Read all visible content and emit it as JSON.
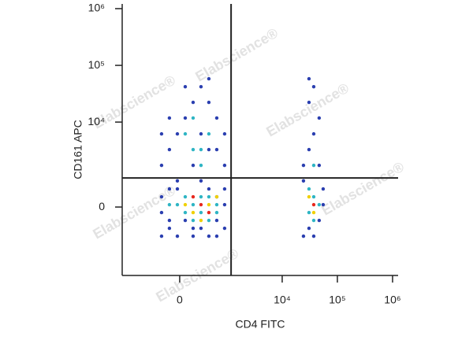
{
  "chart_data": {
    "type": "scatter",
    "xlabel": "CD4 FITC",
    "ylabel": "CD161 APC",
    "watermark": "Elabscience®",
    "xscale": "asinh",
    "xcofactor": 278,
    "yscale": "asinh",
    "ycofactor": 637,
    "xlim": [
      -1518,
      1260000
    ],
    "ylim": [
      -5100,
      1210000
    ],
    "xticks": [
      0,
      {
        "value": 10000,
        "label": "10⁴"
      },
      {
        "value": 100000,
        "label": "10⁵"
      },
      {
        "value": 1000000,
        "label": "10⁶"
      }
    ],
    "yticks": [
      0,
      {
        "value": 10000,
        "label": "10⁴"
      },
      {
        "value": 100000,
        "label": "10⁵"
      },
      {
        "value": 1000000,
        "label": "10⁶"
      }
    ],
    "gates": {
      "x": 1170,
      "y": 940,
      "color": "#222222"
    },
    "series": [
      {
        "color": "#2b3fb0",
        "x": [
          -231,
          -123,
          -27,
          65,
          164,
          281,
          428,
          623,
          884,
          -231,
          -231,
          -123,
          884,
          884,
          623,
          -27,
          428,
          164,
          -123,
          623,
          -231,
          -123,
          -27,
          65,
          164,
          281,
          428,
          623,
          884,
          -231,
          65,
          164,
          281,
          428,
          623,
          884,
          -123,
          281,
          -27,
          428,
          24300,
          30600,
          37300,
          46800,
          55300,
          24300,
          30600,
          37300,
          46800,
          30600,
          37300,
          24300,
          46800,
          55300,
          30600
        ],
        "y": [
          -943,
          -620,
          -943,
          -363,
          -943,
          -620,
          -943,
          -363,
          -620,
          -144,
          272,
          512,
          61,
          512,
          -943,
          512,
          512,
          -620,
          -363,
          272,
          1669,
          3250,
          6180,
          11800,
          22300,
          42000,
          3250,
          11800,
          1669,
          6180,
          42000,
          1669,
          6180,
          22300,
          3250,
          6180,
          11800,
          809,
          809,
          58000,
          -943,
          -620,
          -943,
          -363,
          61,
          809,
          3250,
          6180,
          11800,
          22300,
          42000,
          1669,
          1669,
          512,
          58000
        ]
      },
      {
        "color": "#2fb5c4",
        "x": [
          65,
          164,
          281,
          428,
          623,
          -27,
          164,
          281,
          428,
          -123,
          623,
          65,
          164,
          281,
          65,
          428,
          164,
          281,
          30600,
          37300,
          30600,
          37300,
          46800,
          37300
        ],
        "y": [
          -144,
          61,
          -144,
          272,
          61,
          61,
          -363,
          272,
          -363,
          61,
          -144,
          272,
          3250,
          1669,
          6180,
          6180,
          11800,
          3250,
          -144,
          272,
          512,
          -363,
          61,
          1669
        ]
      },
      {
        "color": "#f0d000",
        "x": [
          164,
          428,
          281,
          65,
          623,
          37300,
          30600
        ],
        "y": [
          -144,
          61,
          -363,
          61,
          272,
          -144,
          272
        ]
      },
      {
        "color": "#e8281e",
        "x": [
          281,
          164,
          428,
          37300
        ],
        "y": [
          61,
          272,
          -144,
          61
        ]
      }
    ]
  }
}
